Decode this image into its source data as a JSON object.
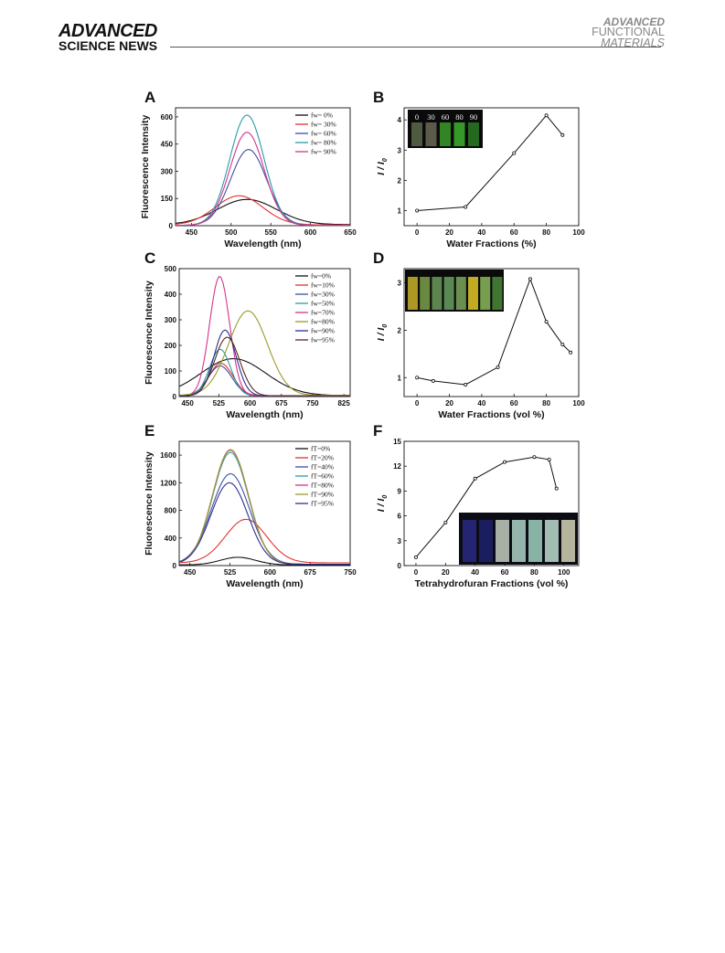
{
  "header": {
    "left_line1": "ADVANCED",
    "left_line2": "SCIENCE NEWS",
    "right_line1": "ADVANCED",
    "right_line2": "FUNCTIONAL",
    "right_line3": "MATERIALS"
  },
  "panels": [
    {
      "label": "A",
      "xlabel": "Wavelength (nm)",
      "ylabel": "Fluorescence Intensity",
      "xticks": [
        "450",
        "500",
        "550",
        "600",
        "650"
      ],
      "yticks": [
        "0",
        "150",
        "300",
        "450",
        "600"
      ],
      "legend": [
        "fw= 0%",
        "fw= 30%",
        "fw= 60%",
        "fw= 80%",
        "fw= 90%"
      ]
    },
    {
      "label": "B",
      "xlabel": "Water Fractions (%)",
      "ylabel": "I / I0",
      "xticks": [
        "0",
        "20",
        "40",
        "60",
        "80",
        "100"
      ],
      "yticks": [
        "1",
        "2",
        "3",
        "4"
      ],
      "inset_labels": [
        "0",
        "30",
        "60",
        "80",
        "90"
      ]
    },
    {
      "label": "C",
      "xlabel": "Wavelength (nm)",
      "ylabel": "Fluorescence Intensity",
      "xticks": [
        "450",
        "525",
        "600",
        "675",
        "750",
        "825"
      ],
      "yticks": [
        "0",
        "100",
        "200",
        "300",
        "400",
        "500"
      ],
      "legend": [
        "fw=0%",
        "fw=10%",
        "fw=30%",
        "fw=50%",
        "fw=70%",
        "fw=80%",
        "fw=90%",
        "fw=95%"
      ]
    },
    {
      "label": "D",
      "xlabel": "Water Fractions (vol %)",
      "ylabel": "I / I0",
      "xticks": [
        "0",
        "20",
        "40",
        "60",
        "80",
        "100"
      ],
      "yticks": [
        "1",
        "2",
        "3"
      ]
    },
    {
      "label": "E",
      "xlabel": "Wavelength (nm)",
      "ylabel": "Fluorescence Intensity",
      "xticks": [
        "450",
        "525",
        "600",
        "675",
        "750"
      ],
      "yticks": [
        "0",
        "400",
        "800",
        "1200",
        "1600"
      ],
      "legend": [
        "fT=0%",
        "fT=20%",
        "fT=40%",
        "fT=60%",
        "fT=80%",
        "fT=90%",
        "fT=95%"
      ]
    },
    {
      "label": "F",
      "xlabel": "Tetrahydrofuran Fractions (vol %)",
      "ylabel": "I / I0",
      "xticks": [
        "0",
        "20",
        "40",
        "60",
        "80",
        "100"
      ],
      "yticks": [
        "0",
        "3",
        "6",
        "9",
        "12",
        "15"
      ]
    }
  ],
  "chart_data": [
    {
      "type": "line",
      "panel": "A",
      "xlabel": "Wavelength (nm)",
      "ylabel": "Fluorescence Intensity",
      "xlim": [
        430,
        650
      ],
      "ylim": [
        0,
        650
      ],
      "series": [
        {
          "name": "fw= 0%",
          "color": "#111111",
          "peak_x": 520,
          "peak_y": 145,
          "width": 62,
          "base": 6
        },
        {
          "name": "fw= 30%",
          "color": "#e3312c",
          "peak_x": 510,
          "peak_y": 165,
          "width": 50,
          "base": 4
        },
        {
          "name": "fw= 60%",
          "color": "#3d4fa6",
          "peak_x": 522,
          "peak_y": 420,
          "width": 38,
          "base": 2
        },
        {
          "name": "fw= 80%",
          "color": "#2c9aa6",
          "peak_x": 520,
          "peak_y": 610,
          "width": 36,
          "base": 2
        },
        {
          "name": "fw= 90%",
          "color": "#d6338c",
          "peak_x": 520,
          "peak_y": 515,
          "width": 36,
          "base": 2
        }
      ]
    },
    {
      "type": "line",
      "panel": "B",
      "xlabel": "Water Fractions (%)",
      "ylabel": "I / I0",
      "xlim": [
        -8,
        100
      ],
      "ylim": [
        0.5,
        4.4
      ],
      "x": [
        0,
        30,
        60,
        80,
        90
      ],
      "y": [
        1.0,
        1.12,
        2.9,
        4.15,
        3.5
      ]
    },
    {
      "type": "line",
      "panel": "C",
      "xlabel": "Wavelength (nm)",
      "ylabel": "Fluorescence Intensity",
      "xlim": [
        430,
        840
      ],
      "ylim": [
        0,
        500
      ],
      "series": [
        {
          "name": "fw=0%",
          "color": "#111111",
          "peak_x": 560,
          "peak_y": 148,
          "width": 130,
          "base": 4
        },
        {
          "name": "fw=10%",
          "color": "#e3312c",
          "peak_x": 530,
          "peak_y": 130,
          "width": 48,
          "base": 3
        },
        {
          "name": "fw=30%",
          "color": "#3d4fa6",
          "peak_x": 528,
          "peak_y": 120,
          "width": 48,
          "base": 3
        },
        {
          "name": "fw=50%",
          "color": "#2c9aa6",
          "peak_x": 528,
          "peak_y": 185,
          "width": 42,
          "base": 3
        },
        {
          "name": "fw=70%",
          "color": "#d6338c",
          "peak_x": 527,
          "peak_y": 470,
          "width": 40,
          "base": 3
        },
        {
          "name": "fw=80%",
          "color": "#9b9b2a",
          "peak_x": 595,
          "peak_y": 335,
          "width": 78,
          "base": 5
        },
        {
          "name": "fw=90%",
          "color": "#2b2f8f",
          "peak_x": 540,
          "peak_y": 260,
          "width": 44,
          "base": 3
        },
        {
          "name": "fw=95%",
          "color": "#5a2a1e",
          "peak_x": 545,
          "peak_y": 232,
          "width": 50,
          "base": 3
        }
      ]
    },
    {
      "type": "line",
      "panel": "D",
      "xlabel": "Water Fractions (vol %)",
      "ylabel": "I / I0",
      "xlim": [
        -8,
        100
      ],
      "ylim": [
        0.6,
        3.3
      ],
      "x": [
        0,
        10,
        30,
        50,
        70,
        80,
        90,
        95
      ],
      "y": [
        1.0,
        0.93,
        0.85,
        1.22,
        3.08,
        2.18,
        1.7,
        1.53
      ]
    },
    {
      "type": "line",
      "panel": "E",
      "xlabel": "Wavelength (nm)",
      "ylabel": "Fluorescence Intensity",
      "xlim": [
        430,
        750
      ],
      "ylim": [
        0,
        1800
      ],
      "series": [
        {
          "name": "fT=0%",
          "color": "#111111",
          "peak_x": 540,
          "peak_y": 120,
          "width": 55,
          "base": 10
        },
        {
          "name": "fT=20%",
          "color": "#e3312c",
          "peak_x": 555,
          "peak_y": 670,
          "width": 65,
          "base": 40
        },
        {
          "name": "fT=40%",
          "color": "#3d4fa6",
          "peak_x": 526,
          "peak_y": 1330,
          "width": 60,
          "base": 20
        },
        {
          "name": "fT=60%",
          "color": "#2c9aa6",
          "peak_x": 526,
          "peak_y": 1640,
          "width": 56,
          "base": 20
        },
        {
          "name": "fT=80%",
          "color": "#d6338c",
          "peak_x": 526,
          "peak_y": 1680,
          "width": 56,
          "base": 20
        },
        {
          "name": "fT=90%",
          "color": "#9b9b2a",
          "peak_x": 526,
          "peak_y": 1670,
          "width": 56,
          "base": 20
        },
        {
          "name": "fT=95%",
          "color": "#2b2f8f",
          "peak_x": 524,
          "peak_y": 1200,
          "width": 58,
          "base": 20
        }
      ]
    },
    {
      "type": "line",
      "panel": "F",
      "xlabel": "Tetrahydrofuran Fractions (vol %)",
      "ylabel": "I / I0",
      "xlim": [
        -8,
        110
      ],
      "ylim": [
        0,
        15
      ],
      "x": [
        0,
        20,
        40,
        60,
        80,
        90,
        95
      ],
      "y": [
        1.0,
        5.2,
        10.5,
        12.5,
        13.1,
        12.8,
        9.3
      ]
    }
  ]
}
